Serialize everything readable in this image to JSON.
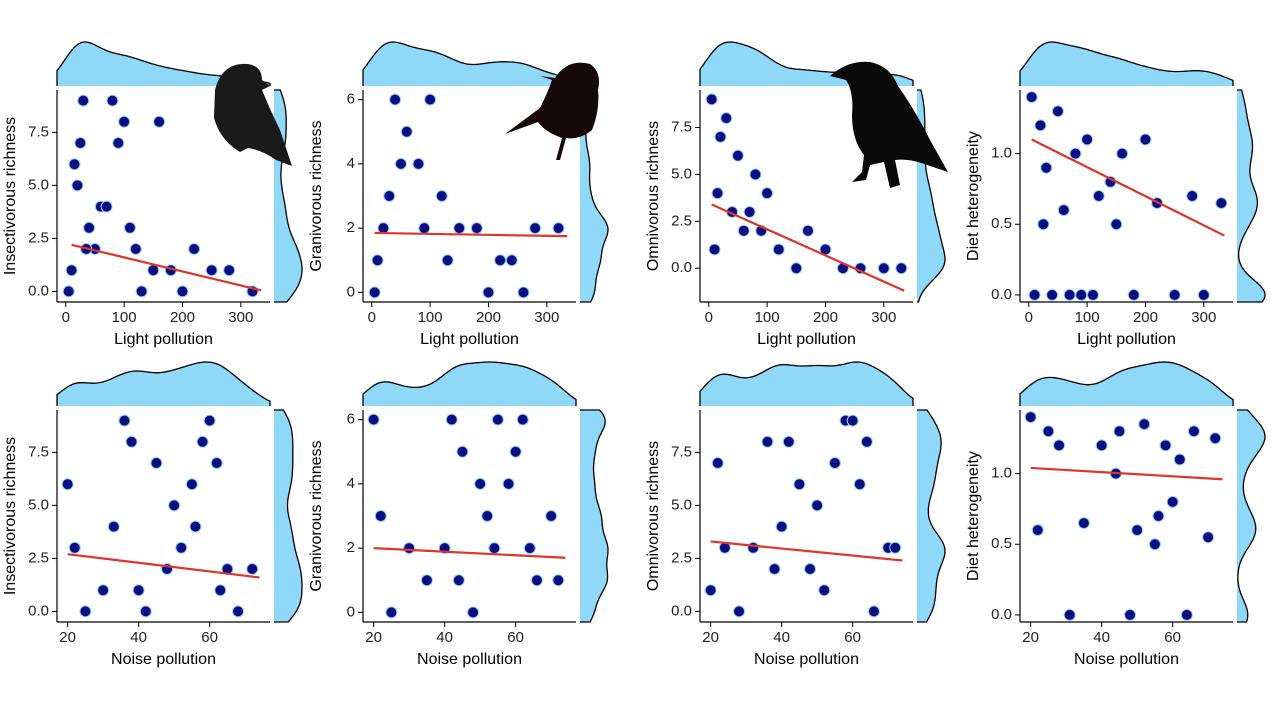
{
  "chart_data": [
    {
      "type": "scatter",
      "xlabel": "Light pollution",
      "ylabel": "Insectivorous richness",
      "x": [
        5,
        10,
        20,
        30,
        40,
        50,
        60,
        80,
        90,
        100,
        120,
        150,
        160,
        200,
        220,
        250,
        280,
        320,
        15,
        70,
        110,
        130,
        180,
        25,
        35
      ],
      "y": [
        0,
        1,
        5,
        9,
        3,
        2,
        4,
        9,
        7,
        8,
        2,
        1,
        8,
        0,
        2,
        1,
        1,
        0,
        6,
        4,
        3,
        0,
        1,
        7,
        2
      ],
      "xlim": [
        -15,
        350
      ],
      "ylim": [
        -0.5,
        9.5
      ],
      "xticks": [
        0,
        100,
        200,
        300
      ],
      "yticks": [
        {
          "value": 0,
          "label": "0.0"
        },
        {
          "value": 2.5,
          "label": "2.5"
        },
        {
          "value": 5,
          "label": "5.0"
        },
        {
          "value": 7.5,
          "label": "7.5"
        }
      ],
      "trend": {
        "x": [
          10,
          335
        ],
        "y": [
          2.2,
          0.05
        ]
      },
      "color": "#0d0d80",
      "edge": "#8fd3f7",
      "trend_color": "#e3322a",
      "density_color": "#8fd8f8"
    },
    {
      "type": "scatter",
      "xlabel": "Light pollution",
      "ylabel": "Granivorous richness",
      "x": [
        5,
        20,
        40,
        60,
        80,
        100,
        120,
        150,
        180,
        200,
        240,
        280,
        320,
        10,
        50,
        90,
        130,
        220,
        260,
        30
      ],
      "y": [
        0,
        2,
        6,
        5,
        4,
        6,
        3,
        2,
        2,
        0,
        1,
        2,
        2,
        1,
        4,
        2,
        1,
        1,
        0,
        3
      ],
      "xlim": [
        -15,
        350
      ],
      "ylim": [
        -0.3,
        6.3
      ],
      "xticks": [
        0,
        100,
        200,
        300
      ],
      "yticks": [
        0,
        2,
        4,
        6
      ],
      "trend": {
        "x": [
          5,
          335
        ],
        "y": [
          1.85,
          1.75
        ]
      },
      "color": "#0d0d80",
      "edge": "#8fd3f7",
      "trend_color": "#e3322a",
      "density_color": "#8fd8f8"
    },
    {
      "type": "scatter",
      "xlabel": "Light pollution",
      "ylabel": "Omnivorous richness",
      "x": [
        5,
        10,
        20,
        30,
        40,
        50,
        60,
        80,
        100,
        120,
        150,
        170,
        200,
        230,
        260,
        300,
        330,
        15,
        70,
        90
      ],
      "y": [
        9,
        1,
        7,
        8,
        3,
        6,
        2,
        5,
        4,
        1,
        0,
        2,
        1,
        0,
        0,
        0,
        0,
        4,
        3,
        2
      ],
      "xlim": [
        -15,
        350
      ],
      "ylim": [
        -1.8,
        9.5
      ],
      "xticks": [
        0,
        100,
        200,
        300
      ],
      "yticks": [
        {
          "value": 0,
          "label": "0.0"
        },
        {
          "value": 2.5,
          "label": "2.5"
        },
        {
          "value": 5,
          "label": "5.0"
        },
        {
          "value": 7.5,
          "label": "7.5"
        }
      ],
      "trend": {
        "x": [
          5,
          335
        ],
        "y": [
          3.4,
          -1.2
        ]
      },
      "color": "#0d0d80",
      "edge": "#8fd3f7",
      "trend_color": "#e3322a",
      "density_color": "#8fd8f8"
    },
    {
      "type": "scatter",
      "xlabel": "Light pollution",
      "ylabel": "Diet heterogeneity",
      "x": [
        5,
        20,
        30,
        50,
        60,
        80,
        100,
        120,
        140,
        160,
        200,
        220,
        280,
        330,
        10,
        40,
        70,
        90,
        110,
        150,
        180,
        250,
        300,
        25
      ],
      "y": [
        1.4,
        1.2,
        0.9,
        1.3,
        0.6,
        1.0,
        1.1,
        0.7,
        0.8,
        1.0,
        1.1,
        0.65,
        0.7,
        0.65,
        0,
        0,
        0,
        0,
        0,
        0.5,
        0,
        0,
        0,
        0.5
      ],
      "xlim": [
        -15,
        350
      ],
      "ylim": [
        -0.05,
        1.45
      ],
      "xticks": [
        0,
        100,
        200,
        300
      ],
      "yticks": [
        {
          "value": 0,
          "label": "0.0"
        },
        {
          "value": 0.5,
          "label": "0.5"
        },
        {
          "value": 1,
          "label": "1.0"
        }
      ],
      "trend": {
        "x": [
          5,
          335
        ],
        "y": [
          1.1,
          0.42
        ]
      },
      "color": "#0d0d80",
      "edge": "#8fd3f7",
      "trend_color": "#e3322a",
      "density_color": "#8fd8f8"
    },
    {
      "type": "scatter",
      "xlabel": "Noise pollution",
      "ylabel": "Insectivorous richness",
      "x": [
        20,
        22,
        25,
        30,
        33,
        36,
        38,
        42,
        45,
        48,
        50,
        52,
        55,
        58,
        60,
        62,
        63,
        65,
        68,
        72,
        40,
        56
      ],
      "y": [
        6,
        3,
        0,
        1,
        4,
        9,
        8,
        0,
        7,
        2,
        5,
        3,
        6,
        8,
        9,
        7,
        1,
        2,
        0,
        2,
        1,
        4
      ],
      "xlim": [
        17,
        77
      ],
      "ylim": [
        -0.5,
        9.5
      ],
      "xticks": [
        20,
        40,
        60
      ],
      "yticks": [
        {
          "value": 0,
          "label": "0.0"
        },
        {
          "value": 2.5,
          "label": "2.5"
        },
        {
          "value": 5,
          "label": "5.0"
        },
        {
          "value": 7.5,
          "label": "7.5"
        }
      ],
      "trend": {
        "x": [
          20,
          74
        ],
        "y": [
          2.7,
          1.6
        ]
      },
      "color": "#0d0d80",
      "edge": "#8fd3f7",
      "trend_color": "#e3322a",
      "density_color": "#8fd8f8"
    },
    {
      "type": "scatter",
      "xlabel": "Noise pollution",
      "ylabel": "Granivorous richness",
      "x": [
        20,
        22,
        25,
        30,
        35,
        40,
        42,
        45,
        48,
        50,
        52,
        55,
        58,
        60,
        62,
        64,
        66,
        70,
        72,
        44,
        54
      ],
      "y": [
        6,
        3,
        0,
        2,
        1,
        2,
        6,
        5,
        0,
        4,
        3,
        6,
        4,
        5,
        6,
        2,
        1,
        3,
        1,
        1,
        2
      ],
      "xlim": [
        17,
        77
      ],
      "ylim": [
        -0.3,
        6.3
      ],
      "xticks": [
        20,
        40,
        60
      ],
      "yticks": [
        0,
        2,
        4,
        6
      ],
      "trend": {
        "x": [
          20,
          74
        ],
        "y": [
          2.0,
          1.7
        ]
      },
      "color": "#0d0d80",
      "edge": "#8fd3f7",
      "trend_color": "#e3322a",
      "density_color": "#8fd8f8"
    },
    {
      "type": "scatter",
      "xlabel": "Noise pollution",
      "ylabel": "Omnivorous richness",
      "x": [
        20,
        22,
        24,
        28,
        32,
        36,
        40,
        42,
        45,
        48,
        50,
        55,
        58,
        60,
        62,
        64,
        66,
        70,
        72,
        38,
        52
      ],
      "y": [
        1,
        7,
        3,
        0,
        3,
        8,
        4,
        8,
        6,
        2,
        5,
        7,
        9,
        9,
        6,
        8,
        0,
        3,
        3,
        2,
        1
      ],
      "xlim": [
        17,
        77
      ],
      "ylim": [
        -0.5,
        9.5
      ],
      "xticks": [
        20,
        40,
        60
      ],
      "yticks": [
        {
          "value": 0,
          "label": "0.0"
        },
        {
          "value": 2.5,
          "label": "2.5"
        },
        {
          "value": 5,
          "label": "5.0"
        },
        {
          "value": 7.5,
          "label": "7.5"
        }
      ],
      "trend": {
        "x": [
          20,
          74
        ],
        "y": [
          3.3,
          2.4
        ]
      },
      "color": "#0d0d80",
      "edge": "#8fd3f7",
      "trend_color": "#e3322a",
      "density_color": "#8fd8f8"
    },
    {
      "type": "scatter",
      "xlabel": "Noise pollution",
      "ylabel": "Diet heterogeneity",
      "x": [
        20,
        22,
        25,
        28,
        31,
        35,
        40,
        45,
        48,
        50,
        52,
        55,
        58,
        60,
        62,
        64,
        66,
        70,
        72,
        56,
        44
      ],
      "y": [
        1.4,
        0.6,
        1.3,
        1.2,
        0,
        0.65,
        1.2,
        1.3,
        0,
        0.6,
        1.35,
        0.5,
        1.2,
        0.8,
        1.1,
        0,
        1.3,
        0.55,
        1.25,
        0.7,
        1.0
      ],
      "xlim": [
        17,
        77
      ],
      "ylim": [
        -0.05,
        1.45
      ],
      "xticks": [
        20,
        40,
        60
      ],
      "yticks": [
        {
          "value": 0,
          "label": "0.0"
        },
        {
          "value": 0.5,
          "label": "0.5"
        },
        {
          "value": 1,
          "label": "1.0"
        }
      ],
      "trend": {
        "x": [
          20,
          74
        ],
        "y": [
          1.04,
          0.96
        ]
      },
      "color": "#0d0d80",
      "edge": "#8fd3f7",
      "trend_color": "#e3322a",
      "density_color": "#8fd8f8"
    }
  ]
}
